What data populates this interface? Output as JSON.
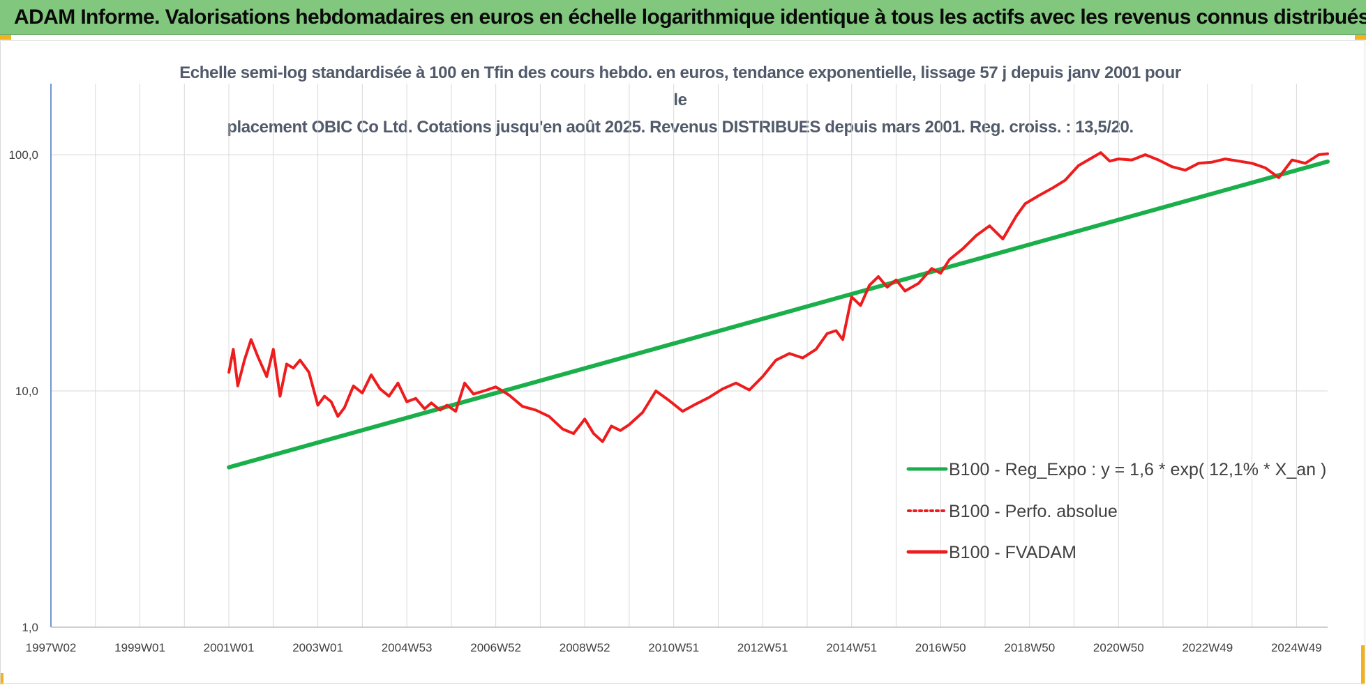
{
  "header": {
    "title": "ADAM Informe. Valorisations hebdomadaires en euros en échelle logarithmique identique à tous les actifs avec les revenus connus distribués"
  },
  "colors": {
    "banner": "#82c77e",
    "trend": "#1aaf4b",
    "series": "#ee1c1c",
    "corner": "#f2b21b"
  },
  "chart_data": {
    "type": "line",
    "title": "Echelle semi-log standardisée à 100 en Tfin des cours hebdo. en euros, tendance exponentielle, lissage 57 j depuis janv 2001 pour le placement OBIC Co Ltd. Cotations jusqu'en août 2025. Revenus DISTRIBUES depuis mars 2001. Reg. croiss. : 13,5/20.",
    "title_lines": [
      "Echelle semi-log standardisée à 100 en Tfin des cours hebdo. en euros, tendance exponentielle, lissage 57 j depuis janv 2001 pour le",
      "placement OBIC Co Ltd. Cotations jusqu'en août 2025. Revenus DISTRIBUES depuis mars 2001. Reg. croiss. : 13,5/20."
    ],
    "y_scale": "log",
    "ylim": [
      1,
      200
    ],
    "y_ticks": [
      1,
      10,
      100
    ],
    "y_tick_labels": [
      "1,0",
      "10,0",
      "100,0"
    ],
    "xlim": [
      1997.0,
      2025.7
    ],
    "x_ticks": [
      1997.0,
      1999.0,
      2001.0,
      2003.0,
      2005.0,
      2007.0,
      2009.0,
      2011.0,
      2013.0,
      2015.0,
      2017.0,
      2019.0,
      2021.0,
      2023.0,
      2025.0
    ],
    "x_tick_labels": [
      "1997W02",
      "1999W01",
      "2001W01",
      "2003W01",
      "2004W53",
      "2006W52",
      "2008W52",
      "2010W51",
      "2012W51",
      "2014W51",
      "2016W50",
      "2018W50",
      "2020W50",
      "2022W49",
      "2024W49"
    ],
    "grid": "vertical and horizontal",
    "legend_position": "right-center",
    "series": [
      {
        "name": "B100 - Reg_Expo : y = 1,6 * exp( 12,1% *  X_an )",
        "style": "solid",
        "color": "#1aaf4b",
        "x": [
          2001.0,
          2025.7
        ],
        "y": [
          4.75,
          93.5
        ]
      },
      {
        "name": "B100 - Perfo. absolue",
        "style": "dotted",
        "color": "#ee1c1c",
        "x": [],
        "y": []
      },
      {
        "name": "B100 - FVADAM",
        "style": "solid",
        "color": "#ee1c1c",
        "x": [
          2001.0,
          2001.1,
          2001.2,
          2001.35,
          2001.5,
          2001.65,
          2001.85,
          2002.0,
          2002.15,
          2002.3,
          2002.45,
          2002.6,
          2002.8,
          2003.0,
          2003.15,
          2003.3,
          2003.45,
          2003.6,
          2003.8,
          2004.0,
          2004.2,
          2004.4,
          2004.6,
          2004.8,
          2005.0,
          2005.2,
          2005.4,
          2005.55,
          2005.75,
          2005.9,
          2006.1,
          2006.3,
          2006.5,
          2006.8,
          2007.0,
          2007.3,
          2007.6,
          2007.9,
          2008.2,
          2008.5,
          2008.75,
          2009.0,
          2009.2,
          2009.4,
          2009.6,
          2009.8,
          2010.0,
          2010.3,
          2010.6,
          2010.9,
          2011.2,
          2011.5,
          2011.8,
          2012.1,
          2012.4,
          2012.7,
          2013.0,
          2013.3,
          2013.6,
          2013.9,
          2014.2,
          2014.45,
          2014.65,
          2014.8,
          2015.0,
          2015.2,
          2015.4,
          2015.6,
          2015.8,
          2016.0,
          2016.2,
          2016.5,
          2016.8,
          2017.0,
          2017.2,
          2017.5,
          2017.8,
          2018.1,
          2018.4,
          2018.7,
          2018.9,
          2019.2,
          2019.5,
          2019.8,
          2020.1,
          2020.4,
          2020.6,
          2020.8,
          2021.0,
          2021.3,
          2021.6,
          2021.9,
          2022.2,
          2022.5,
          2022.8,
          2023.1,
          2023.4,
          2023.7,
          2024.0,
          2024.3,
          2024.6,
          2024.9,
          2025.2,
          2025.5,
          2025.7
        ],
        "y": [
          12.0,
          15.0,
          10.5,
          13.5,
          16.5,
          14.0,
          11.5,
          15.0,
          9.5,
          13.0,
          12.5,
          13.5,
          12.0,
          8.7,
          9.5,
          9.0,
          7.8,
          8.5,
          10.5,
          9.8,
          11.7,
          10.2,
          9.5,
          10.8,
          9.0,
          9.3,
          8.4,
          8.9,
          8.3,
          8.7,
          8.2,
          10.8,
          9.7,
          10.1,
          10.4,
          9.6,
          8.6,
          8.3,
          7.8,
          6.9,
          6.6,
          7.6,
          6.6,
          6.1,
          7.1,
          6.8,
          7.2,
          8.1,
          10.0,
          9.1,
          8.2,
          8.8,
          9.4,
          10.2,
          10.8,
          10.1,
          11.5,
          13.5,
          14.4,
          13.8,
          15.0,
          17.5,
          18.0,
          16.5,
          25.0,
          23.0,
          28.0,
          30.5,
          27.5,
          29.5,
          26.5,
          28.5,
          33.0,
          31.5,
          36.0,
          40.0,
          45.5,
          50.0,
          44.0,
          55.0,
          62.0,
          67.0,
          72.0,
          78.0,
          90.0,
          97.0,
          102.0,
          94.0,
          96.0,
          95.0,
          100.0,
          95.0,
          89.0,
          86.0,
          92.0,
          93.0,
          96.0,
          94.0,
          92.0,
          88.0,
          80.0,
          95.0,
          92.0,
          100.0,
          101.0
        ]
      }
    ]
  }
}
